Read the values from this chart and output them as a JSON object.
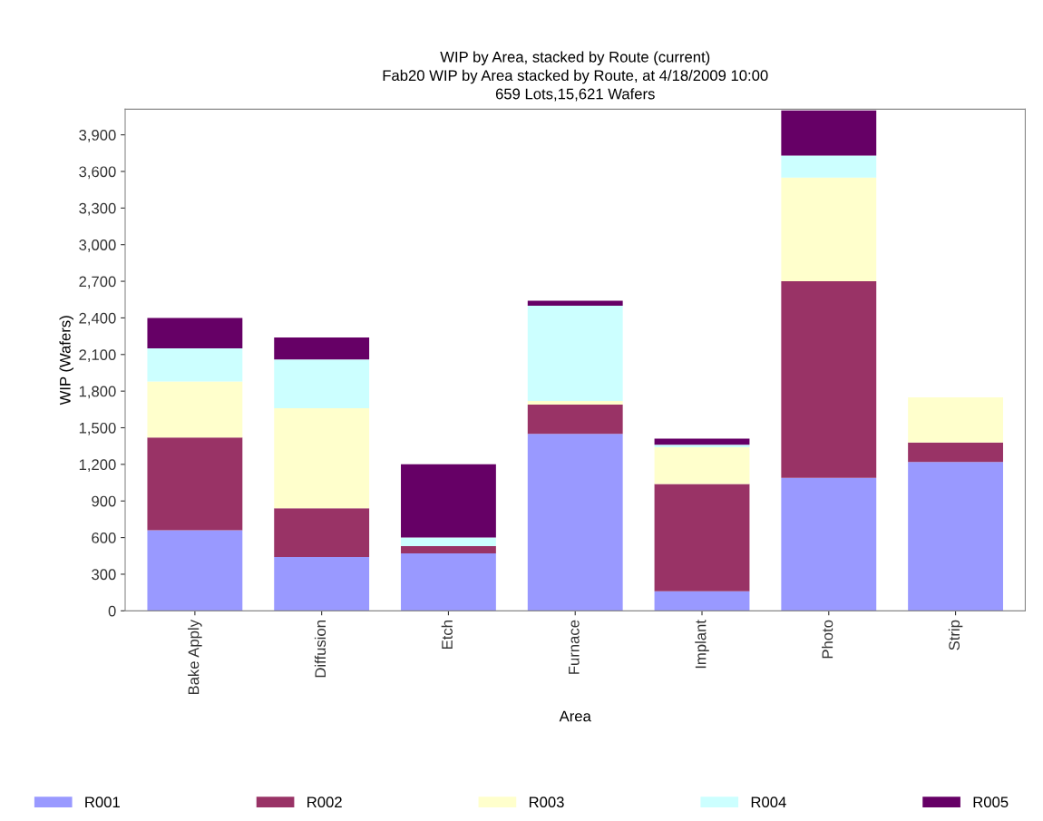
{
  "chart_data": {
    "type": "bar",
    "title": "WIP by Area, stacked by Route (current)\nFab20 WIP by Area stacked by Route, at 4/18/2009 10:00\n659 Lots,15,621 Wafers",
    "xlabel": "Area",
    "ylabel": "WIP (Wafers)",
    "categories": [
      "Bake Apply",
      "Diffusion",
      "Etch",
      "Furnace",
      "Implant",
      "Photo",
      "Strip"
    ],
    "stacked": true,
    "series": [
      {
        "name": "R001",
        "color": "#9999ff",
        "values": [
          660,
          440,
          470,
          1450,
          160,
          1090,
          1220
        ]
      },
      {
        "name": "R002",
        "color": "#993366",
        "values": [
          760,
          400,
          60,
          240,
          880,
          1610,
          160
        ]
      },
      {
        "name": "R003",
        "color": "#ffffcc",
        "values": [
          460,
          820,
          0,
          30,
          300,
          850,
          370
        ]
      },
      {
        "name": "R004",
        "color": "#ccffff",
        "values": [
          270,
          400,
          70,
          780,
          20,
          180,
          0
        ]
      },
      {
        "name": "R005",
        "color": "#660066",
        "values": [
          250,
          180,
          600,
          40,
          50,
          370,
          0
        ]
      }
    ],
    "ylim": [
      0,
      4110
    ],
    "yticks": [
      {
        "value": 0,
        "label": "0"
      },
      {
        "value": 300,
        "label": "300"
      },
      {
        "value": 600,
        "label": "600"
      },
      {
        "value": 900,
        "label": "900"
      },
      {
        "value": 1200,
        "label": "1,200"
      },
      {
        "value": 1500,
        "label": "1,500"
      },
      {
        "value": 1800,
        "label": "1,800"
      },
      {
        "value": 2100,
        "label": "2,100"
      },
      {
        "value": 2400,
        "label": "2,400"
      },
      {
        "value": 2700,
        "label": "2,700"
      },
      {
        "value": 3000,
        "label": "3,000"
      },
      {
        "value": 3300,
        "label": "3,300"
      },
      {
        "value": 3600,
        "label": "3,600"
      },
      {
        "value": 3900,
        "label": "3,900"
      }
    ],
    "grid": false,
    "legend": "bottom"
  }
}
